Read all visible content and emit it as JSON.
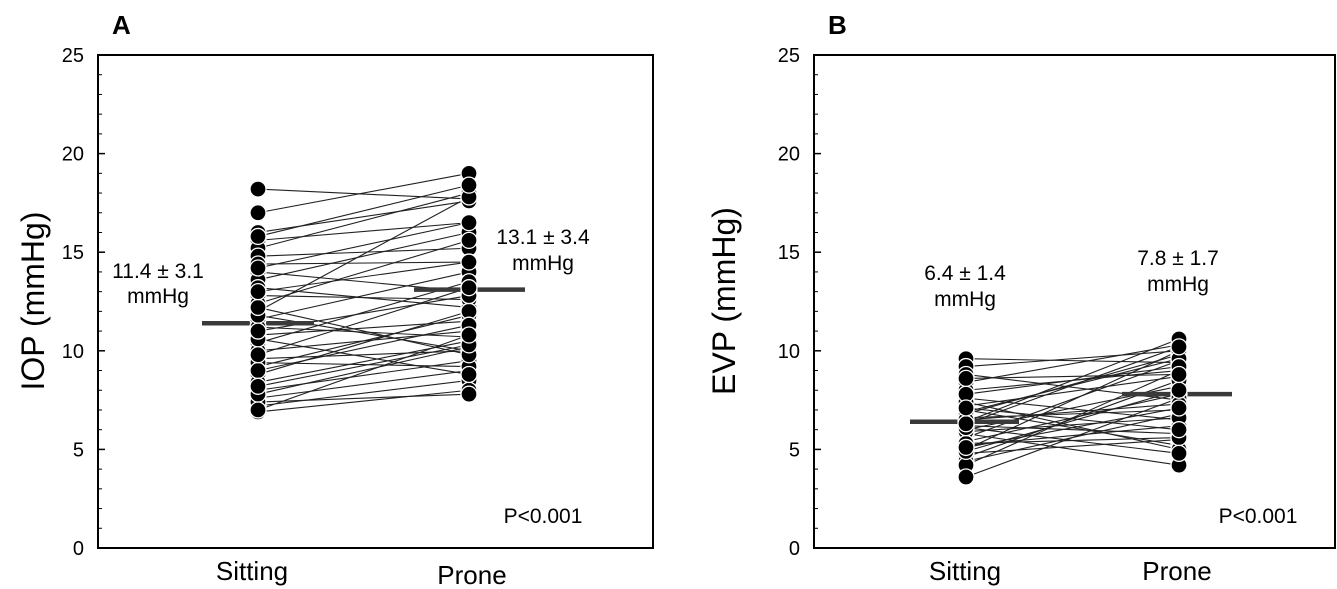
{
  "chart_data": [
    {
      "panel": "A",
      "type": "scatter",
      "ylabel": "IOP (mmHg)",
      "categories": [
        "Sitting",
        "Prone"
      ],
      "ylim": [
        0,
        25
      ],
      "yticks": [
        0,
        5,
        10,
        15,
        20,
        25
      ],
      "grid": false,
      "pairs": [
        [
          18.2,
          17.7
        ],
        [
          17.0,
          19.0
        ],
        [
          16.0,
          17.6
        ],
        [
          15.6,
          16.5
        ],
        [
          15.2,
          18.0
        ],
        [
          14.8,
          15.2
        ],
        [
          14.4,
          14.5
        ],
        [
          14.0,
          13.0
        ],
        [
          13.6,
          16.0
        ],
        [
          13.2,
          12.2
        ],
        [
          12.8,
          12.6
        ],
        [
          12.4,
          15.6
        ],
        [
          12.0,
          17.8
        ],
        [
          11.6,
          14.0
        ],
        [
          11.2,
          10.7
        ],
        [
          10.8,
          11.5
        ],
        [
          10.4,
          13.5
        ],
        [
          10.0,
          11.0
        ],
        [
          9.6,
          10.0
        ],
        [
          9.2,
          11.8
        ],
        [
          8.8,
          12.0
        ],
        [
          8.4,
          10.5
        ],
        [
          8.0,
          9.5
        ],
        [
          7.6,
          9.0
        ],
        [
          7.2,
          8.5
        ],
        [
          6.9,
          8.0
        ],
        [
          7.4,
          7.8
        ],
        [
          7.8,
          10.2
        ],
        [
          9.4,
          9.2
        ],
        [
          10.6,
          8.8
        ],
        [
          11.8,
          10.0
        ],
        [
          12.2,
          9.8
        ],
        [
          13.0,
          14.5
        ],
        [
          14.2,
          16.5
        ],
        [
          9.0,
          11.3
        ],
        [
          8.2,
          10.3
        ],
        [
          15.8,
          18.4
        ],
        [
          7.0,
          10.8
        ],
        [
          11.0,
          12.8
        ],
        [
          9.8,
          13.2
        ]
      ],
      "means": [
        11.4,
        13.1
      ],
      "annotations": {
        "sitting": [
          "11.4 ± 3.1",
          "mmHg"
        ],
        "prone": [
          "13.1 ± 3.4",
          "mmHg"
        ],
        "p_value": "P<0.001"
      }
    },
    {
      "panel": "B",
      "type": "scatter",
      "ylabel": "EVP (mmHg)",
      "categories": [
        "Sitting",
        "Prone"
      ],
      "ylim": [
        0,
        25
      ],
      "yticks": [
        0,
        5,
        10,
        15,
        20,
        25
      ],
      "grid": false,
      "pairs": [
        [
          9.6,
          9.4
        ],
        [
          9.2,
          10.0
        ],
        [
          8.8,
          7.5
        ],
        [
          8.4,
          10.3
        ],
        [
          8.0,
          9.0
        ],
        [
          7.6,
          6.5
        ],
        [
          7.2,
          8.7
        ],
        [
          7.0,
          5.2
        ],
        [
          6.8,
          9.8
        ],
        [
          6.6,
          7.0
        ],
        [
          6.4,
          10.6
        ],
        [
          6.2,
          5.8
        ],
        [
          6.0,
          8.2
        ],
        [
          5.8,
          4.2
        ],
        [
          5.6,
          9.5
        ],
        [
          5.4,
          7.8
        ],
        [
          5.2,
          6.2
        ],
        [
          5.0,
          10.0
        ],
        [
          4.8,
          5.5
        ],
        [
          4.6,
          8.5
        ],
        [
          4.4,
          6.8
        ],
        [
          4.2,
          9.0
        ],
        [
          3.6,
          7.6
        ],
        [
          7.4,
          5.0
        ],
        [
          6.9,
          9.6
        ],
        [
          5.9,
          6.6
        ],
        [
          6.5,
          7.3
        ],
        [
          4.9,
          8.0
        ],
        [
          7.8,
          9.2
        ],
        [
          5.3,
          5.6
        ],
        [
          8.6,
          8.8
        ],
        [
          6.1,
          4.8
        ],
        [
          6.3,
          10.2
        ],
        [
          7.1,
          6.0
        ],
        [
          5.1,
          7.1
        ]
      ],
      "means": [
        6.4,
        7.8
      ],
      "annotations": {
        "sitting": [
          "6.4 ± 1.4",
          "mmHg"
        ],
        "prone": [
          "7.8 ± 1.7",
          "mmHg"
        ],
        "p_value": "P<0.001"
      }
    }
  ]
}
